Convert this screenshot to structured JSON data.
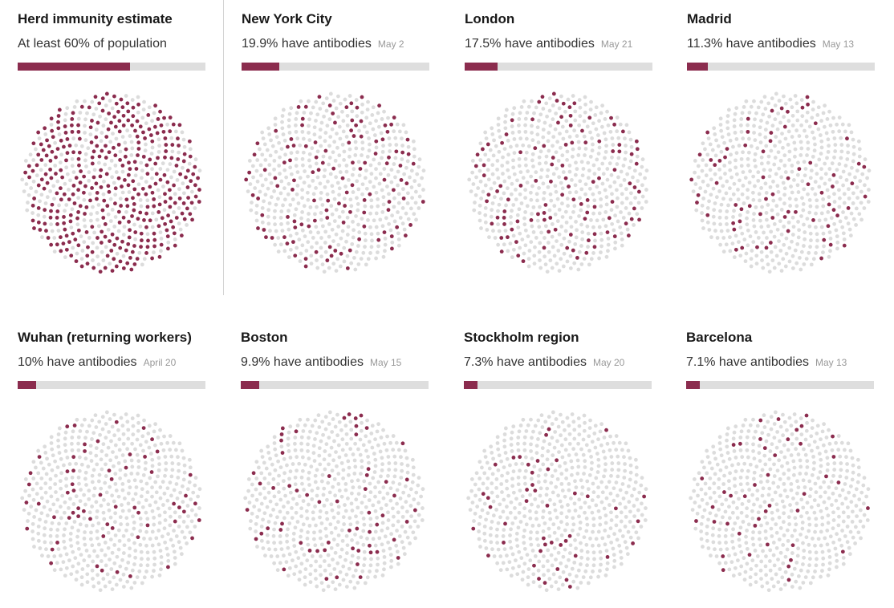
{
  "colors": {
    "positive": "#8b2c4e",
    "negative": "#dcdcdc",
    "track": "#dedede"
  },
  "chart_data": [
    {
      "type": "dot-grid",
      "title": "Herd immunity estimate",
      "subtitle": "At least 60% of population",
      "date": "",
      "value_percent": 60
    },
    {
      "type": "dot-grid",
      "title": "New York City",
      "subtitle": "19.9% have antibodies",
      "date": "May 2",
      "value_percent": 19.9
    },
    {
      "type": "dot-grid",
      "title": "London",
      "subtitle": "17.5% have antibodies",
      "date": "May 21",
      "value_percent": 17.5
    },
    {
      "type": "dot-grid",
      "title": "Madrid",
      "subtitle": "11.3% have antibodies",
      "date": "May 13",
      "value_percent": 11.3
    },
    {
      "type": "dot-grid",
      "title": "Wuhan (returning workers)",
      "subtitle": "10% have antibodies",
      "date": "April 20",
      "value_percent": 10
    },
    {
      "type": "dot-grid",
      "title": "Boston",
      "subtitle": "9.9% have antibodies",
      "date": "May 15",
      "value_percent": 9.9
    },
    {
      "type": "dot-grid",
      "title": "Stockholm region",
      "subtitle": "7.3% have antibodies",
      "date": "May 20",
      "value_percent": 7.3
    },
    {
      "type": "dot-grid",
      "title": "Barcelona",
      "subtitle": "7.1% have antibodies",
      "date": "May 13",
      "value_percent": 7.1
    }
  ]
}
